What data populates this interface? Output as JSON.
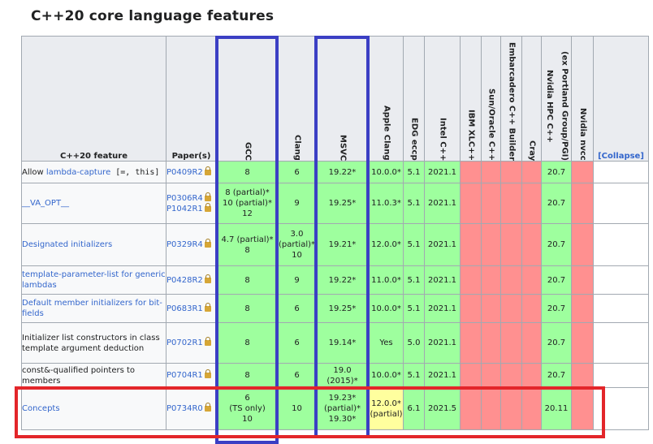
{
  "page_title": "C++20 core language features",
  "headers": {
    "feature": "C++20 feature",
    "paper": "Paper(s)",
    "compilers": [
      "GCC",
      "Clang",
      "MSVC",
      "Apple Clang",
      "EDG eccp",
      "Intel C++",
      "IBM XLC++",
      "Sun/Oracle C++",
      "Embarcadero C++ Builder",
      "Cray",
      "Nvidia HPC C++",
      "(ex Portland Group/PGI)",
      "Nvidia nvcc"
    ],
    "collapse": "[Collapse]"
  },
  "rows": [
    {
      "feature_prefix": "Allow ",
      "feature_link": "lambda-capture",
      "feature_code": " [=, this]",
      "papers": [
        "P0409R2"
      ],
      "gcc": "8",
      "clang": "6",
      "msvc": "19.22*",
      "apple": "10.0.0*",
      "edg": "5.1",
      "intel": "2021.1",
      "nvhpc": "20.7"
    },
    {
      "feature_link": "__VA_OPT__",
      "papers": [
        "P0306R4",
        "P1042R1"
      ],
      "gcc_lines": [
        "8 (partial)*",
        "10 (partial)*",
        "12"
      ],
      "clang": "9",
      "msvc": "19.25*",
      "apple": "11.0.3*",
      "edg": "5.1",
      "intel": "2021.1",
      "nvhpc": "20.7"
    },
    {
      "feature_link": "Designated initializers",
      "papers": [
        "P0329R4"
      ],
      "gcc_lines": [
        "4.7 (partial)*",
        "8"
      ],
      "clang_lines": [
        "3.0",
        "(partial)*",
        "10"
      ],
      "msvc": "19.21*",
      "apple": "12.0.0*",
      "edg": "5.1",
      "intel": "2021.1",
      "nvhpc": "20.7"
    },
    {
      "feature_link": "template-parameter-list for generic lambdas",
      "papers": [
        "P0428R2"
      ],
      "gcc": "8",
      "clang": "9",
      "msvc": "19.22*",
      "apple": "11.0.0*",
      "edg": "5.1",
      "intel": "2021.1",
      "nvhpc": "20.7"
    },
    {
      "feature_link": "Default member initializers for bit-fields",
      "papers": [
        "P0683R1"
      ],
      "gcc": "8",
      "clang": "6",
      "msvc": "19.25*",
      "apple": "10.0.0*",
      "edg": "5.1",
      "intel": "2021.1",
      "nvhpc": "20.7"
    },
    {
      "feature_text": "Initializer list constructors in class template argument deduction",
      "papers": [
        "P0702R1"
      ],
      "gcc": "8",
      "clang": "6",
      "msvc": "19.14*",
      "apple": "Yes",
      "edg": "5.0",
      "intel": "2021.1",
      "nvhpc": "20.7"
    },
    {
      "feature_text": "const&-qualified pointers to members",
      "papers": [
        "P0704R1"
      ],
      "gcc": "8",
      "clang": "6",
      "msvc_lines": [
        "19.0",
        "(2015)*"
      ],
      "apple": "10.0.0*",
      "edg": "5.1",
      "intel": "2021.1",
      "nvhpc": "20.7"
    },
    {
      "feature_link": "Concepts",
      "papers": [
        "P0734R0"
      ],
      "gcc_lines": [
        "6",
        "(TS only)",
        "10"
      ],
      "clang": "10",
      "msvc_lines": [
        "19.23*",
        "(partial)*",
        "19.30*"
      ],
      "apple_lines": [
        "12.0.0*",
        "(partial)"
      ],
      "edg": "6.1",
      "intel": "2021.5",
      "nvhpc": "20.11"
    }
  ]
}
